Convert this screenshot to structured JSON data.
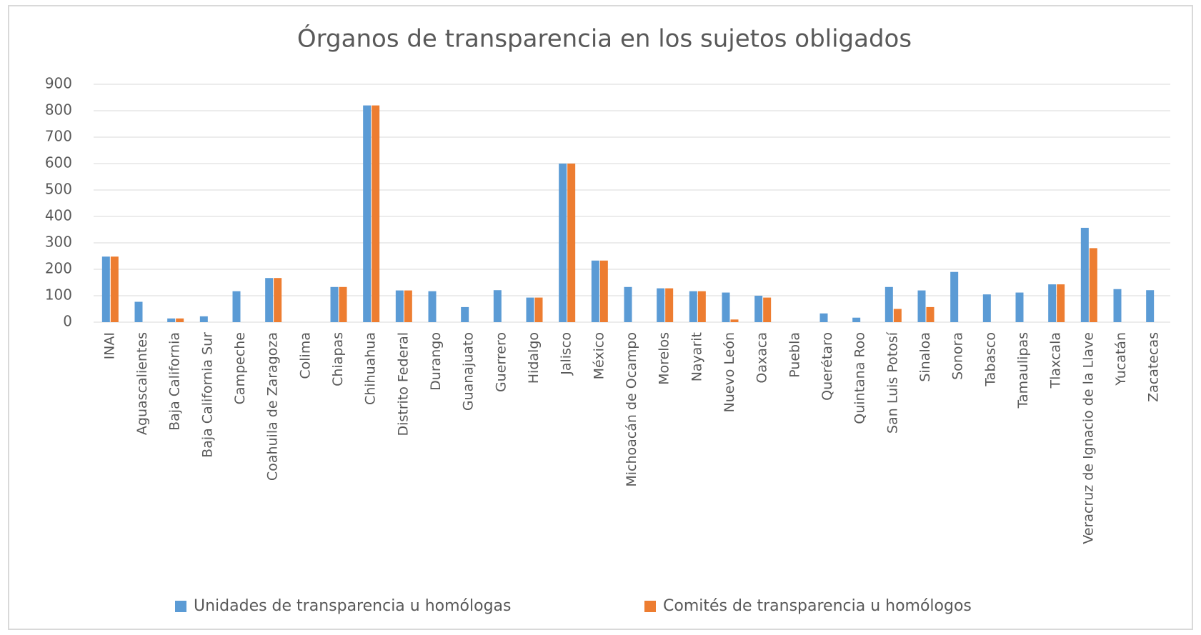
{
  "chart_data": {
    "type": "bar",
    "title": "Órganos de transparencia en los sujetos obligados",
    "categories": [
      "INAI",
      "Aguascalientes",
      "Baja California",
      "Baja California Sur",
      "Campeche",
      "Coahuila de Zaragoza",
      "Colima",
      "Chiapas",
      "Chihuahua",
      "Distrito Federal",
      "Durango",
      "Guanajuato",
      "Guerrero",
      "Hidalgo",
      "Jalisco",
      "México",
      "Michoacán de Ocampo",
      "Morelos",
      "Nayarit",
      "Nuevo León",
      "Oaxaca",
      "Puebla",
      "Querétaro",
      "Quintana Roo",
      "San Luis Potosí",
      "Sinaloa",
      "Sonora",
      "Tabasco",
      "Tamaulipas",
      "Tlaxcala",
      "Veracruz de Ignacio de la Llave",
      "Yucatán",
      "Zacatecas"
    ],
    "series": [
      {
        "name": "Unidades de transparencia u homólogas",
        "color": "#5b9bd5",
        "values": [
          248,
          77,
          14,
          22,
          117,
          167,
          0,
          133,
          820,
          120,
          117,
          57,
          121,
          93,
          600,
          233,
          133,
          128,
          117,
          112,
          100,
          0,
          33,
          17,
          133,
          120,
          190,
          105,
          112,
          143,
          357,
          125,
          121
        ]
      },
      {
        "name": "Comités de transparencia u homólogos",
        "color": "#ed7d31",
        "values": [
          248,
          0,
          14,
          0,
          0,
          167,
          0,
          133,
          820,
          120,
          0,
          0,
          0,
          93,
          600,
          233,
          0,
          128,
          117,
          10,
          93,
          0,
          0,
          0,
          50,
          57,
          0,
          0,
          0,
          143,
          280,
          0,
          0
        ]
      }
    ],
    "ylim": [
      0,
      900
    ],
    "yticks": [
      0,
      100,
      200,
      300,
      400,
      500,
      600,
      700,
      800,
      900
    ],
    "grid": true,
    "legend": "bottom"
  }
}
